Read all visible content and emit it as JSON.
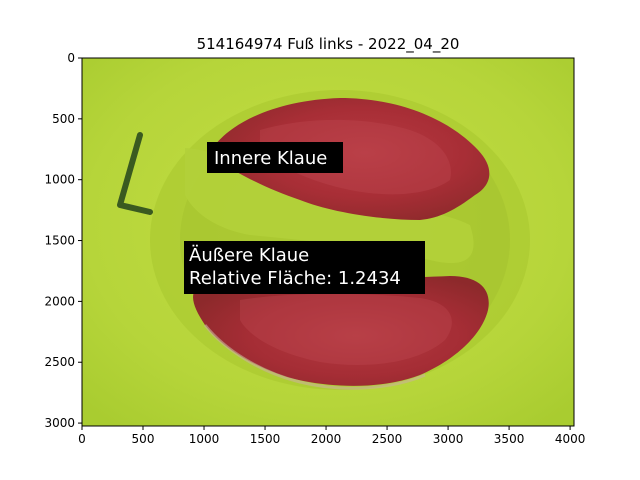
{
  "title": "514164974 Fuß links - 2022_04_20",
  "axes": {
    "x_ticks": [
      "0",
      "500",
      "1000",
      "1500",
      "2000",
      "2500",
      "3000",
      "3500",
      "4000"
    ],
    "y_ticks": [
      "0",
      "500",
      "1000",
      "1500",
      "2000",
      "2500",
      "3000"
    ]
  },
  "annotations": {
    "inner": "Innere Klaue",
    "outer_line1": "Äußere Klaue",
    "outer_line2": "Relative Fläche: 1.2434"
  },
  "colors": {
    "background_fabric": "#b8d63a",
    "claw_overlay": "#b0303a",
    "label_box": "#000000"
  },
  "image": {
    "description_icon": "hoof-photo-with-segmentation-overlay"
  }
}
